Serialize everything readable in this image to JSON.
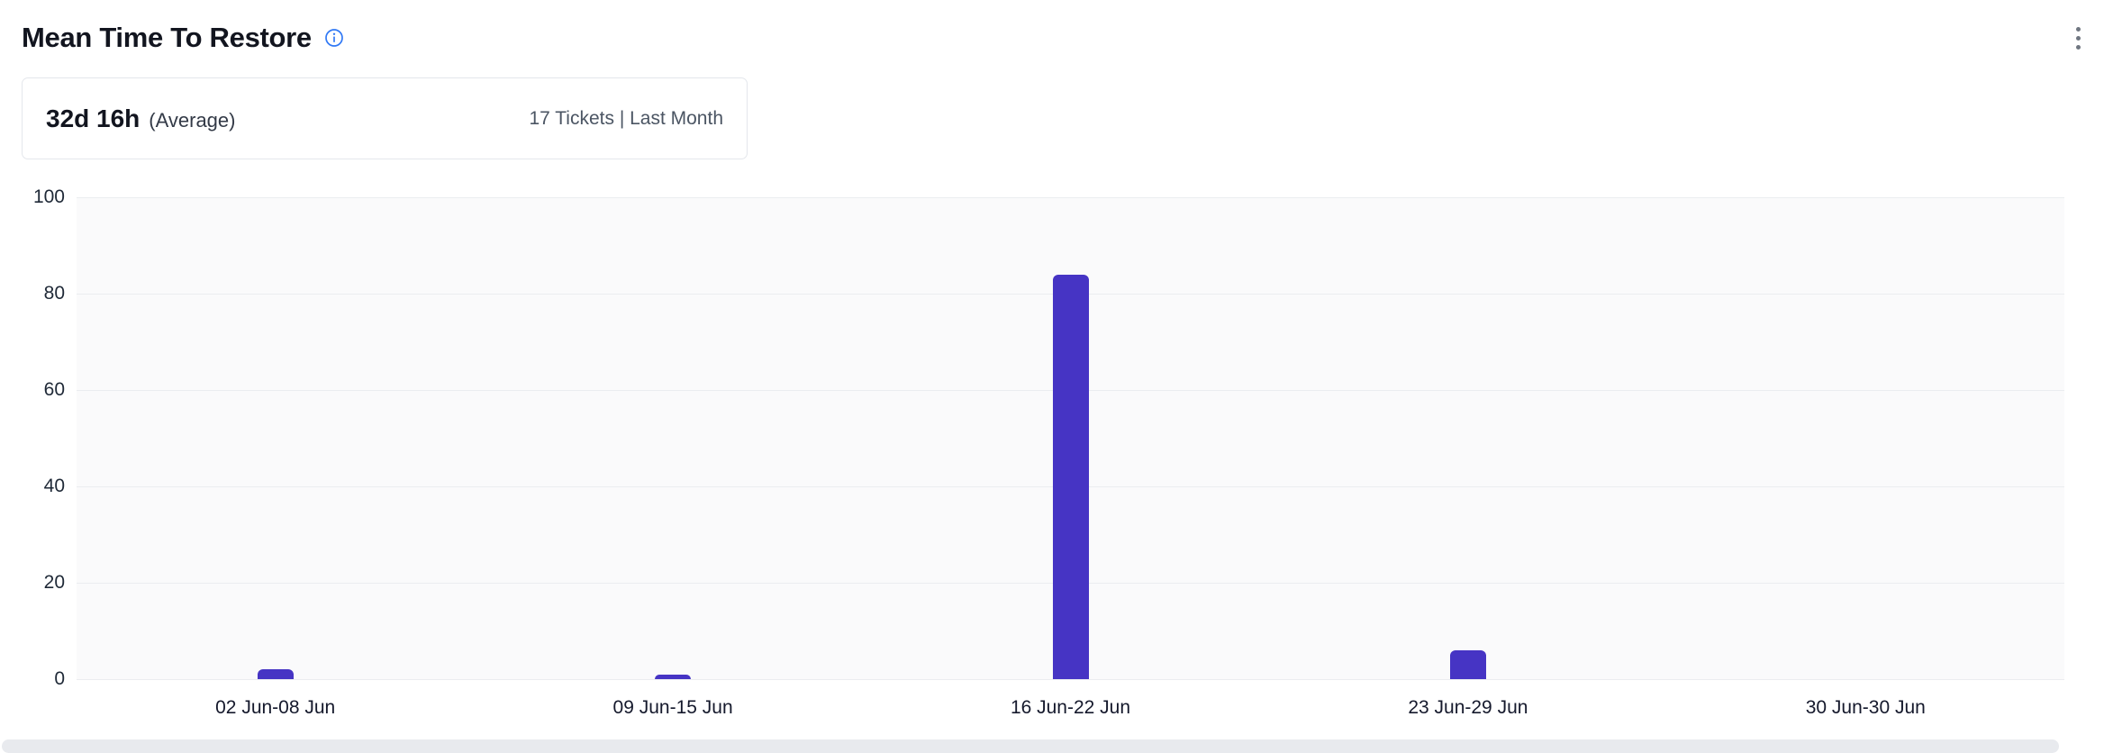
{
  "header": {
    "title": "Mean Time To Restore"
  },
  "summary": {
    "value": "32d 16h",
    "value_suffix": "(Average)",
    "meta": "17 Tickets | Last Month"
  },
  "chart_data": {
    "type": "bar",
    "title": "Mean Time To Restore",
    "categories": [
      "02 Jun-08 Jun",
      "09 Jun-15 Jun",
      "16 Jun-22 Jun",
      "23 Jun-29 Jun",
      "30 Jun-30 Jun"
    ],
    "values": [
      2,
      1,
      84,
      6,
      0
    ],
    "xlabel": "",
    "ylabel": "",
    "ylim": [
      0,
      100
    ],
    "yticks": [
      0,
      20,
      40,
      60,
      80,
      100
    ],
    "grid": true,
    "legend": "none",
    "bar_color": "#4634c4",
    "plot_background": "#fafafb",
    "gridline_color": "#ebedf0"
  },
  "colors": {
    "accent_info": "#3179f5",
    "bar": "#4634c4"
  }
}
